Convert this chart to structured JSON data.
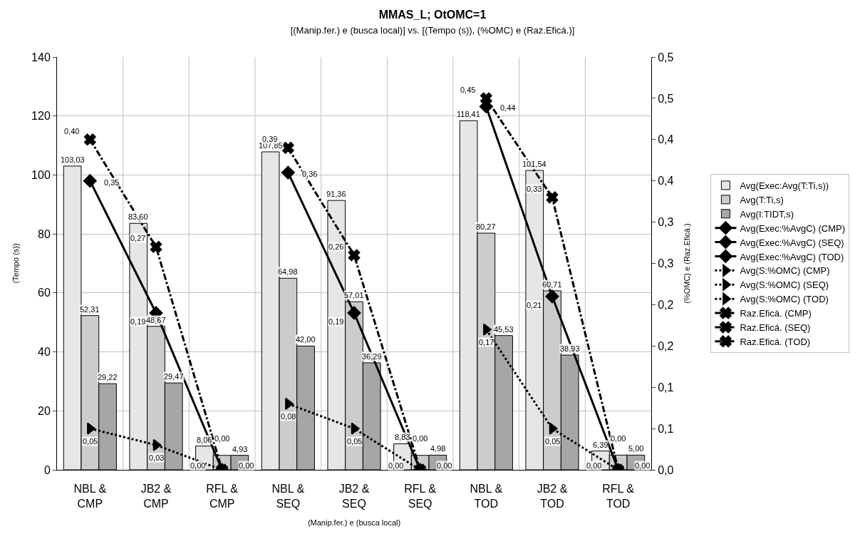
{
  "chart_data": {
    "type": "bar",
    "title": "MMAS_L; OtOMC=1",
    "subtitle": "[(Manip.fer.) e (busca local)] vs. [(Tempo (s)), (%OMC) e (Raz.Eficá.)]",
    "xlabel": "(Manip.fer.) e (busca local)",
    "ylabel": "(Tempo (s))",
    "y2label": "(%OMC) e (Raz.Eficá.)",
    "categories": [
      "NBL &\nCMP",
      "JB2 &\nCMP",
      "RFL &\nCMP",
      "NBL &\nSEQ",
      "JB2 &\nSEQ",
      "RFL &\nSEQ",
      "NBL &\nTOD",
      "JB2 &\nTOD",
      "RFL &\nTOD"
    ],
    "ylim": [
      0,
      140
    ],
    "yticks": [
      0,
      20,
      40,
      60,
      80,
      100,
      120,
      140
    ],
    "y2lim": [
      0,
      0.5
    ],
    "y2ticks": [
      {
        "value": 0,
        "label": "0,0"
      },
      {
        "value": 0.05,
        "label": "0,1"
      },
      {
        "value": 0.1,
        "label": "0,1"
      },
      {
        "value": 0.15,
        "label": "0,2"
      },
      {
        "value": 0.2,
        "label": "0,2"
      },
      {
        "value": 0.25,
        "label": "0,3"
      },
      {
        "value": 0.3,
        "label": "0,3"
      },
      {
        "value": 0.35,
        "label": "0,4"
      },
      {
        "value": 0.4,
        "label": "0,4"
      },
      {
        "value": 0.45,
        "label": "0,5"
      },
      {
        "value": 0.5,
        "label": "0,5"
      }
    ],
    "grid": true,
    "legend": "right",
    "series": [
      {
        "name": "Avg(Exec:Avg(T:Ti,s))",
        "color": "#e6e6e6",
        "values": [
          103.03,
          83.6,
          8.06,
          107.85,
          91.36,
          8.83,
          118.41,
          101.54,
          6.39
        ],
        "value_labels": [
          "103,03",
          "83,60",
          "8,06",
          "107,85",
          "91,36",
          "8,83",
          "118,41",
          "101,54",
          "6,39"
        ]
      },
      {
        "name": "Avg(T:Ti,s)",
        "color": "#cccccc",
        "values": [
          52.31,
          48.67,
          4.9,
          64.98,
          57.01,
          4.9,
          80.27,
          60.71,
          5.0
        ],
        "value_labels": [
          "52,31",
          "48,67",
          null,
          "64,98",
          "57,01",
          null,
          "80,27",
          "60,71",
          null
        ]
      },
      {
        "name": "Avg(I:TIDT,s)",
        "color": "#a6a6a6",
        "values": [
          29.22,
          29.47,
          4.93,
          42.0,
          36.29,
          4.98,
          45.53,
          38.93,
          5.0
        ],
        "value_labels": [
          "29,22",
          "29,47",
          "4,93",
          "42,00",
          "36,29",
          "4,98",
          "45,53",
          "38,93",
          "5,00"
        ]
      },
      {
        "name": "Avg(Exec:%AvgC) (CMP)",
        "type": "line",
        "axis": "y2",
        "color": "#000000",
        "marker": "diamond",
        "line_style": "solid",
        "values": [
          0.35,
          0.19,
          0.0,
          null,
          null,
          null,
          null,
          null,
          null
        ],
        "value_labels": [
          "0,35",
          "0,19",
          "0,00",
          null,
          null,
          null,
          null,
          null,
          null
        ]
      },
      {
        "name": "Avg(Exec:%AvgC) (SEQ)",
        "type": "line",
        "axis": "y2",
        "color": "#000000",
        "marker": "diamond",
        "line_style": "solid",
        "values": [
          null,
          null,
          null,
          0.36,
          0.19,
          0.0,
          null,
          null,
          null
        ],
        "value_labels": [
          null,
          null,
          null,
          "0,36",
          "0,19",
          "0,00",
          null,
          null,
          null
        ]
      },
      {
        "name": "Avg(Exec:%AvgC) (TOD)",
        "type": "line",
        "axis": "y2",
        "color": "#000000",
        "marker": "diamond",
        "line_style": "solid",
        "values": [
          null,
          null,
          null,
          null,
          null,
          null,
          0.44,
          0.21,
          0.0
        ],
        "value_labels": [
          null,
          null,
          null,
          null,
          null,
          null,
          "0,44",
          "0,21",
          "0,00"
        ]
      },
      {
        "name": "Avg(S:%OMC) (CMP)",
        "type": "line",
        "axis": "y2",
        "color": "#000000",
        "marker": "triangle",
        "line_style": "dotted",
        "values": [
          0.05,
          0.03,
          0.0,
          null,
          null,
          null,
          null,
          null,
          null
        ],
        "value_labels": [
          "0,05",
          "0,03",
          "0,00",
          null,
          null,
          null,
          null,
          null,
          null
        ]
      },
      {
        "name": "Avg(S:%OMC) (SEQ)",
        "type": "line",
        "axis": "y2",
        "color": "#000000",
        "marker": "triangle",
        "line_style": "dotted",
        "values": [
          null,
          null,
          null,
          0.08,
          0.05,
          0.0,
          null,
          null,
          null
        ],
        "value_labels": [
          null,
          null,
          null,
          "0,08",
          "0,05",
          "0,00",
          null,
          null,
          null
        ]
      },
      {
        "name": "Avg(S:%OMC) (TOD)",
        "type": "line",
        "axis": "y2",
        "color": "#000000",
        "marker": "triangle",
        "line_style": "dotted",
        "values": [
          null,
          null,
          null,
          null,
          null,
          null,
          0.17,
          0.05,
          0.0
        ],
        "value_labels": [
          null,
          null,
          null,
          null,
          null,
          null,
          "0,17",
          "0,05",
          "0,00"
        ]
      },
      {
        "name": "Raz.Eficá. (CMP)",
        "type": "line",
        "axis": "y2",
        "color": "#000000",
        "marker": "cross",
        "line_style": "dashdot",
        "values": [
          0.4,
          0.27,
          0.0,
          null,
          null,
          null,
          null,
          null,
          null
        ],
        "value_labels": [
          "0,40",
          "0,27",
          "0,00",
          null,
          null,
          null,
          null,
          null,
          null
        ]
      },
      {
        "name": "Raz.Eficá. (SEQ)",
        "type": "line",
        "axis": "y2",
        "color": "#000000",
        "marker": "cross",
        "line_style": "dashdot",
        "values": [
          null,
          null,
          null,
          0.39,
          0.26,
          0.0,
          null,
          null,
          null
        ],
        "value_labels": [
          null,
          null,
          null,
          "0,39",
          "0,26",
          "0,00",
          null,
          null,
          null
        ]
      },
      {
        "name": "Raz.Eficá. (TOD)",
        "type": "line",
        "axis": "y2",
        "color": "#000000",
        "marker": "cross",
        "line_style": "dashdot",
        "values": [
          null,
          null,
          null,
          null,
          null,
          null,
          0.45,
          0.33,
          0.0
        ],
        "value_labels": [
          null,
          null,
          null,
          null,
          null,
          null,
          "0,45",
          "0,33",
          "0,00"
        ]
      }
    ]
  }
}
